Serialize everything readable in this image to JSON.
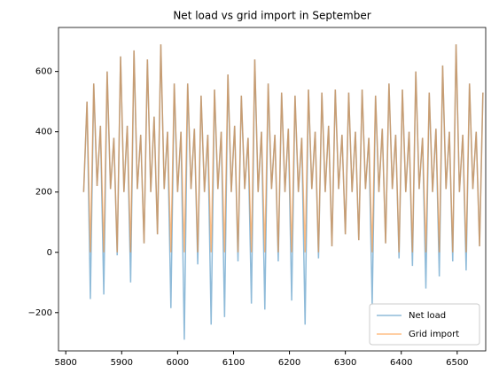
{
  "chart_data": {
    "type": "line",
    "title": "Net load vs grid import in September",
    "x": [
      5832,
      5838,
      5844,
      5850,
      5856,
      5862,
      5868,
      5874,
      5880,
      5886,
      5892,
      5898,
      5904,
      5910,
      5916,
      5922,
      5928,
      5934,
      5940,
      5946,
      5952,
      5958,
      5964,
      5970,
      5976,
      5982,
      5988,
      5994,
      6000,
      6006,
      6012,
      6018,
      6024,
      6030,
      6036,
      6042,
      6048,
      6054,
      6060,
      6066,
      6072,
      6078,
      6084,
      6090,
      6096,
      6102,
      6108,
      6114,
      6120,
      6126,
      6132,
      6138,
      6144,
      6150,
      6156,
      6162,
      6168,
      6174,
      6180,
      6186,
      6192,
      6198,
      6204,
      6210,
      6216,
      6222,
      6228,
      6234,
      6240,
      6246,
      6252,
      6258,
      6264,
      6270,
      6276,
      6282,
      6288,
      6294,
      6300,
      6306,
      6312,
      6318,
      6324,
      6330,
      6336,
      6342,
      6348,
      6354,
      6360,
      6366,
      6372,
      6378,
      6384,
      6390,
      6396,
      6402,
      6408,
      6414,
      6420,
      6426,
      6432,
      6438,
      6444,
      6450,
      6456,
      6462,
      6468,
      6474,
      6480,
      6486,
      6492,
      6498,
      6504,
      6510,
      6516,
      6522,
      6528,
      6534,
      6540,
      6546
    ],
    "series": [
      {
        "name": "Net load",
        "color": "#1f77b4",
        "values": [
          200,
          500,
          -155,
          560,
          220,
          420,
          -140,
          600,
          210,
          380,
          -10,
          650,
          200,
          420,
          -100,
          670,
          210,
          390,
          30,
          640,
          200,
          450,
          60,
          690,
          210,
          400,
          -185,
          560,
          200,
          400,
          -290,
          560,
          210,
          410,
          -40,
          520,
          200,
          390,
          -240,
          540,
          210,
          400,
          -215,
          590,
          200,
          420,
          -30,
          520,
          210,
          380,
          -170,
          640,
          200,
          400,
          -190,
          560,
          210,
          390,
          -30,
          530,
          200,
          410,
          -160,
          520,
          200,
          380,
          -240,
          540,
          210,
          400,
          -20,
          530,
          200,
          420,
          20,
          540,
          210,
          390,
          60,
          530,
          200,
          400,
          40,
          540,
          210,
          380,
          -175,
          520,
          200,
          410,
          30,
          560,
          210,
          390,
          -20,
          540,
          200,
          400,
          -45,
          600,
          210,
          380,
          -120,
          530,
          200,
          410,
          -80,
          620,
          210,
          400,
          -30,
          690,
          200,
          390,
          -60,
          560,
          210,
          400,
          20,
          530
        ]
      },
      {
        "name": "Grid import",
        "color": "#ff7f0e",
        "values": [
          200,
          500,
          0,
          560,
          220,
          420,
          0,
          600,
          210,
          380,
          0,
          650,
          200,
          420,
          0,
          670,
          210,
          390,
          30,
          640,
          200,
          450,
          60,
          690,
          210,
          400,
          0,
          560,
          200,
          400,
          0,
          560,
          210,
          410,
          0,
          520,
          200,
          390,
          0,
          540,
          210,
          400,
          0,
          590,
          200,
          420,
          0,
          520,
          210,
          380,
          0,
          640,
          200,
          400,
          0,
          560,
          210,
          390,
          0,
          530,
          200,
          410,
          0,
          520,
          200,
          380,
          0,
          540,
          210,
          400,
          0,
          530,
          200,
          420,
          20,
          540,
          210,
          390,
          60,
          530,
          200,
          400,
          40,
          540,
          210,
          380,
          0,
          520,
          200,
          410,
          30,
          560,
          210,
          390,
          0,
          540,
          200,
          400,
          0,
          600,
          210,
          380,
          0,
          530,
          200,
          410,
          0,
          620,
          210,
          400,
          0,
          690,
          200,
          390,
          0,
          560,
          210,
          400,
          20,
          530
        ]
      }
    ],
    "xlim": [
      5787,
      6551
    ],
    "xticks": [
      5800,
      5900,
      6000,
      6100,
      6200,
      6300,
      6400,
      6500
    ],
    "ylim": [
      -327,
      746
    ],
    "yticks": [
      {
        "value": -200,
        "label": "−200"
      },
      0,
      200,
      400,
      600
    ],
    "legend": "lower right"
  }
}
